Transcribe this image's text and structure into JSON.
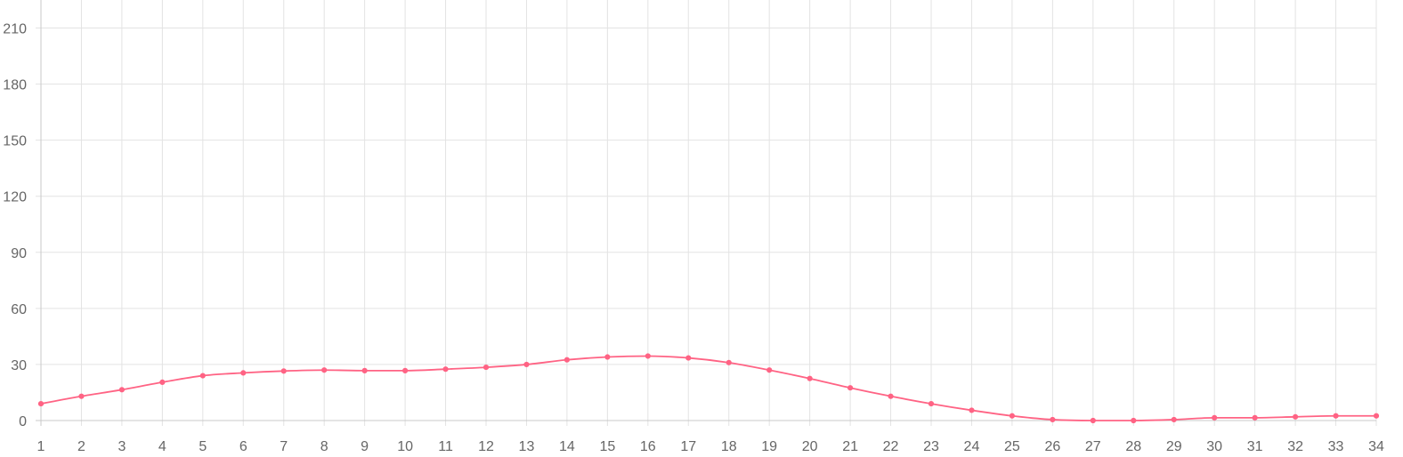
{
  "chart_data": {
    "type": "line",
    "title": "",
    "xlabel": "",
    "ylabel": "",
    "x": [
      "1",
      "2",
      "3",
      "4",
      "5",
      "6",
      "7",
      "8",
      "9",
      "10",
      "11",
      "12",
      "13",
      "14",
      "15",
      "16",
      "17",
      "18",
      "19",
      "20",
      "21",
      "22",
      "23",
      "24",
      "25",
      "26",
      "27",
      "28",
      "29",
      "30",
      "31",
      "32",
      "33",
      "34"
    ],
    "y_ticks": [
      0,
      30,
      60,
      90,
      120,
      150,
      180,
      210
    ],
    "ylim": [
      0,
      225
    ],
    "grid": true,
    "legend": "none",
    "series": [
      {
        "name": "",
        "color": "#ff6384",
        "values": [
          9,
          13,
          16.5,
          20.5,
          24,
          25.5,
          26.5,
          27,
          26.7,
          26.7,
          27.5,
          28.5,
          30,
          32.5,
          34,
          34.5,
          33.5,
          31,
          27,
          22.5,
          17.5,
          13,
          9,
          5.5,
          2.5,
          0.5,
          0,
          0,
          0.5,
          1.5,
          1.5,
          2,
          2.5,
          2.5
        ]
      }
    ]
  }
}
